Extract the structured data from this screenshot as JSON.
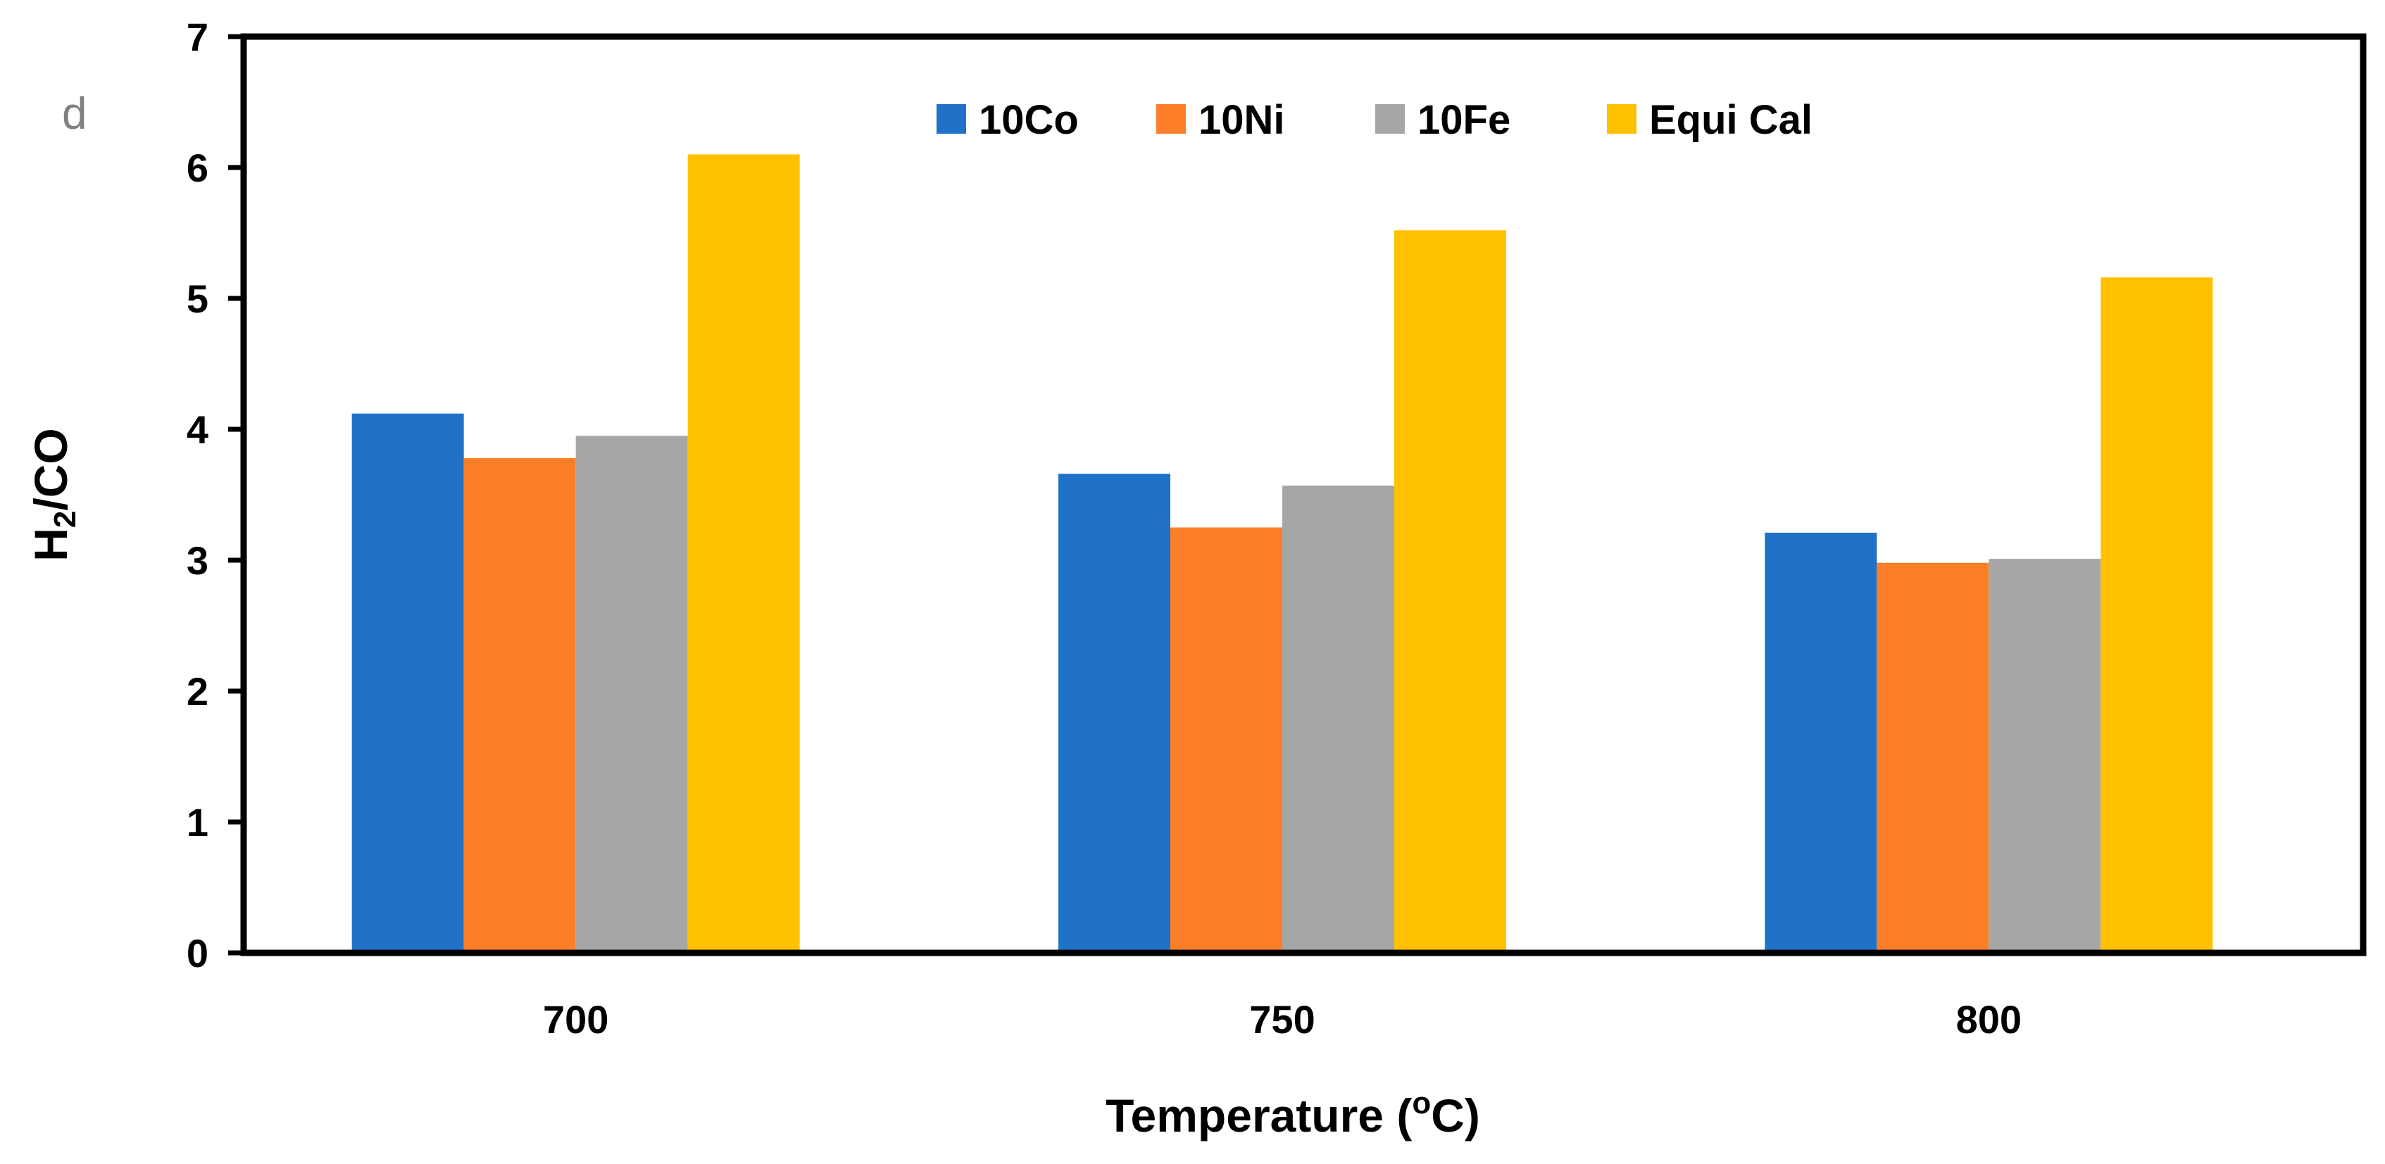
{
  "chart_data": {
    "type": "bar",
    "panel_label": "d",
    "categories": [
      "700",
      "750",
      "800"
    ],
    "series": [
      {
        "name": "10Co",
        "color": "#1f72c8",
        "values": [
          4.12,
          3.66,
          3.21
        ]
      },
      {
        "name": "10Ni",
        "color": "#fb7f28",
        "values": [
          3.78,
          3.25,
          2.98
        ]
      },
      {
        "name": "10Fe",
        "color": "#a6a6a6",
        "values": [
          3.95,
          3.57,
          3.01
        ]
      },
      {
        "name": "Equi Cal",
        "color": "#ffc000",
        "values": [
          6.1,
          5.52,
          5.16
        ]
      }
    ],
    "yticks": [
      "0",
      "1",
      "2",
      "3",
      "4",
      "5",
      "6",
      "7"
    ],
    "ylim": [
      0,
      7
    ],
    "ylabel": {
      "main": "H",
      "sub": "2",
      "rest": "/CO"
    },
    "xlabel": {
      "main": "Temperature (",
      "sup": "o",
      "rest": "C)"
    },
    "legend_position": "top-center",
    "grid": false
  }
}
